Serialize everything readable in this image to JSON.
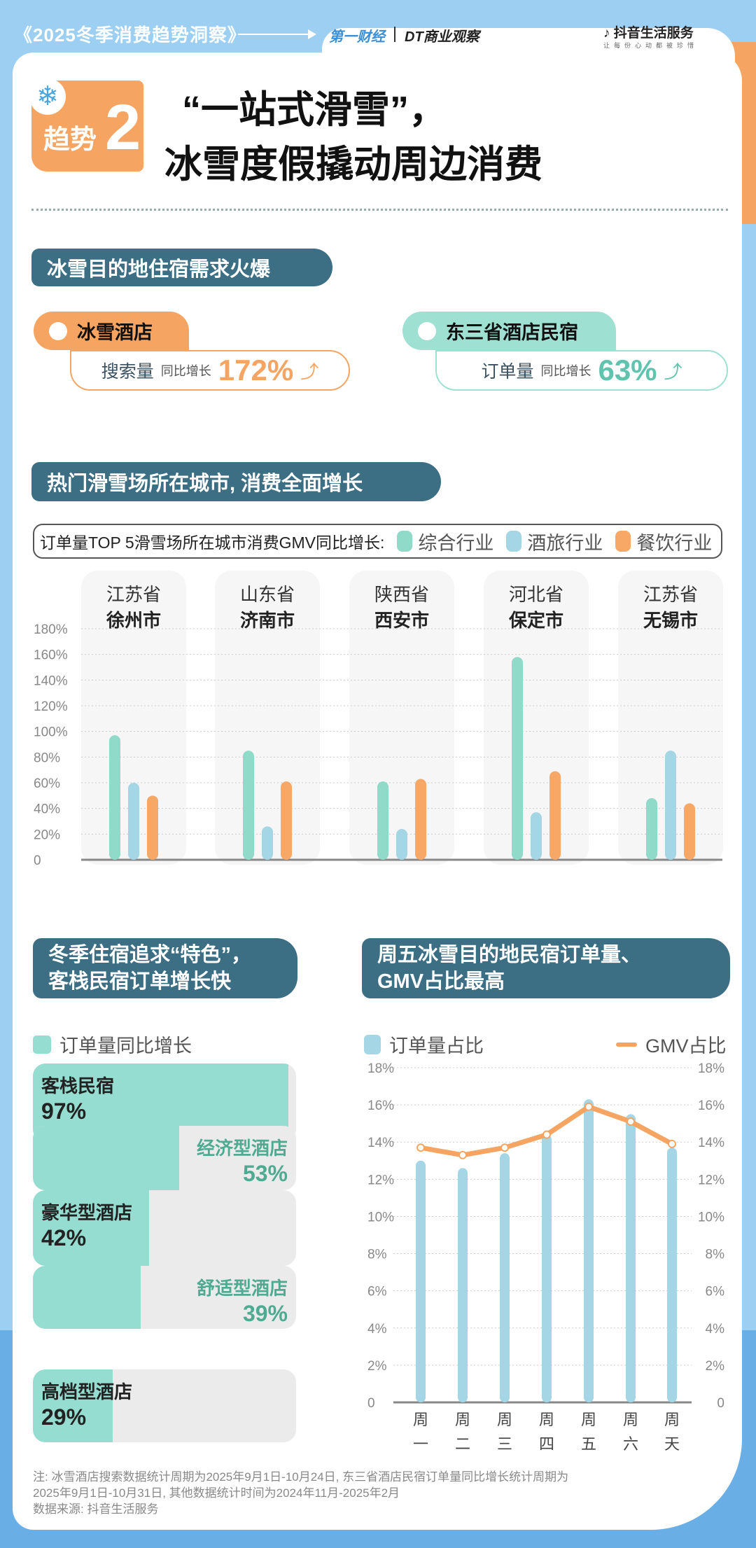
{
  "header": {
    "title": "《2025冬季消费趋势洞察》",
    "logo_yicai": "第一财经",
    "logo_dt": "DT商业观察",
    "logo_douyin": "抖音生活服务",
    "logo_douyin_slogan": "让每份心动都被珍惜"
  },
  "badge": {
    "label": "趋势",
    "number": "2",
    "icon": "snowflake-icon"
  },
  "title": {
    "line1": "“一站式滑雪”，",
    "line2": "冰雪度假撬动周边消费"
  },
  "section1": {
    "heading": "冰雪目的地住宿需求火爆",
    "cards": [
      {
        "tab": "冰雪酒店",
        "metric": "搜索量",
        "sub": "同比增长",
        "value": "172%",
        "color": "#f5a462"
      },
      {
        "tab": "东三省酒店民宿",
        "metric": "订单量",
        "sub": "同比增长",
        "value": "63%",
        "color": "#5fc3ad"
      }
    ]
  },
  "section2": {
    "heading": "热门滑雪场所在城市, 消费全面增长"
  },
  "chart_data": [
    {
      "type": "bar",
      "title": "订单量TOP 5滑雪场所在城市消费GMV同比增长:",
      "categories": [
        {
          "province": "江苏省",
          "city": "徐州市"
        },
        {
          "province": "山东省",
          "city": "济南市"
        },
        {
          "province": "陕西省",
          "city": "西安市"
        },
        {
          "province": "河北省",
          "city": "保定市"
        },
        {
          "province": "江苏省",
          "city": "无锡市"
        }
      ],
      "series": [
        {
          "name": "综合行业",
          "color": "#8fdac9",
          "values": [
            97,
            85,
            61,
            158,
            48
          ]
        },
        {
          "name": "酒旅行业",
          "color": "#a4d6e6",
          "values": [
            60,
            26,
            24,
            37,
            85
          ]
        },
        {
          "name": "餐饮行业",
          "color": "#f7a866",
          "values": [
            50,
            61,
            63,
            69,
            44
          ]
        }
      ],
      "ylim": [
        0,
        180
      ],
      "yticks": [
        "0",
        "20%",
        "40%",
        "60%",
        "80%",
        "100%",
        "120%",
        "140%",
        "160%",
        "180%"
      ],
      "grid": true,
      "legend": "top"
    },
    {
      "type": "bar+line",
      "title": "周五冰雪目的地民宿订单量、GMV占比最高",
      "categories": [
        [
          "周",
          "一"
        ],
        [
          "周",
          "二"
        ],
        [
          "周",
          "三"
        ],
        [
          "周",
          "四"
        ],
        [
          "周",
          "五"
        ],
        [
          "周",
          "六"
        ],
        [
          "周",
          "天"
        ]
      ],
      "series": [
        {
          "name": "订单量占比",
          "type": "bar",
          "color": "#a4d6e6",
          "values": [
            13.0,
            12.6,
            13.4,
            14.4,
            16.3,
            15.5,
            13.7
          ]
        },
        {
          "name": "GMV占比",
          "type": "line",
          "color": "#f5a462",
          "values": [
            13.7,
            13.3,
            13.7,
            14.4,
            15.9,
            15.1,
            13.9
          ]
        }
      ],
      "ylim": [
        0,
        18
      ],
      "yticks": [
        "0",
        "2%",
        "4%",
        "6%",
        "8%",
        "10%",
        "12%",
        "14%",
        "16%",
        "18%"
      ],
      "grid": true,
      "legend": "top"
    }
  ],
  "section3": {
    "heading_line1": "冬季住宿追求“特色”，",
    "heading_line2": "客栈民宿订单增长快",
    "legend": "订单量同比增长",
    "items": [
      {
        "label": "客栈民宿",
        "value": "97%",
        "pct": 97
      },
      {
        "label": "经济型酒店",
        "value": "53%",
        "pct": 53
      },
      {
        "label": "豪华型酒店",
        "value": "42%",
        "pct": 42
      },
      {
        "label": "舒适型酒店",
        "value": "39%",
        "pct": 39
      },
      {
        "label": "高档型酒店",
        "value": "29%",
        "pct": 29
      }
    ]
  },
  "section4": {
    "heading_line1": "周五冰雪目的地民宿订单量、",
    "heading_line2": "GMV占比最高"
  },
  "footnote": {
    "line1": "注: 冰雪酒店搜索数据统计周期为2025年9月1日-10月24日, 东三省酒店民宿订单量同比增长统计周期为",
    "line2": "2025年9月1日-10月31日, 其他数据统计时间为2024年11月-2025年2月",
    "line3": "数据来源: 抖音生活服务"
  }
}
